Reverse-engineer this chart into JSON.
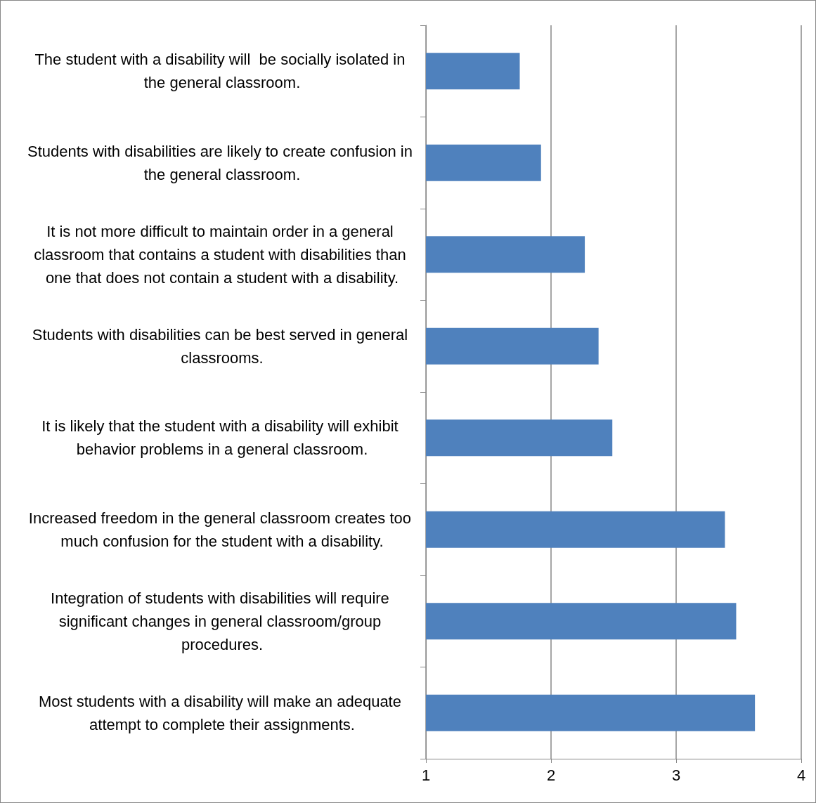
{
  "chart_data": {
    "type": "bar",
    "orientation": "horizontal",
    "categories": [
      "The student with a disability will  be socially isolated in the general classroom.",
      "Students with disabilities are likely to create confusion in the general classroom.",
      "It is not more difficult to maintain order in a general classroom that contains a student with disabilities than one that does not contain a student with a disability.",
      "Students with disabilities can be best served in general classrooms.",
      "It is likely that the student with a disability will exhibit behavior problems in a general classroom.",
      "Increased freedom in the general classroom creates too much confusion for the student with a disability.",
      "Integration of students with disabilities will require significant changes in general classroom/group procedures.",
      "Most students with a disability will make an adequate attempt to complete their assignments."
    ],
    "values": [
      1.75,
      1.92,
      2.27,
      2.38,
      2.49,
      3.39,
      3.48,
      3.63
    ],
    "color": "#4f81bd",
    "xlim": [
      1,
      4
    ],
    "xticks": [
      1,
      2,
      3,
      4
    ],
    "grid": "x"
  }
}
